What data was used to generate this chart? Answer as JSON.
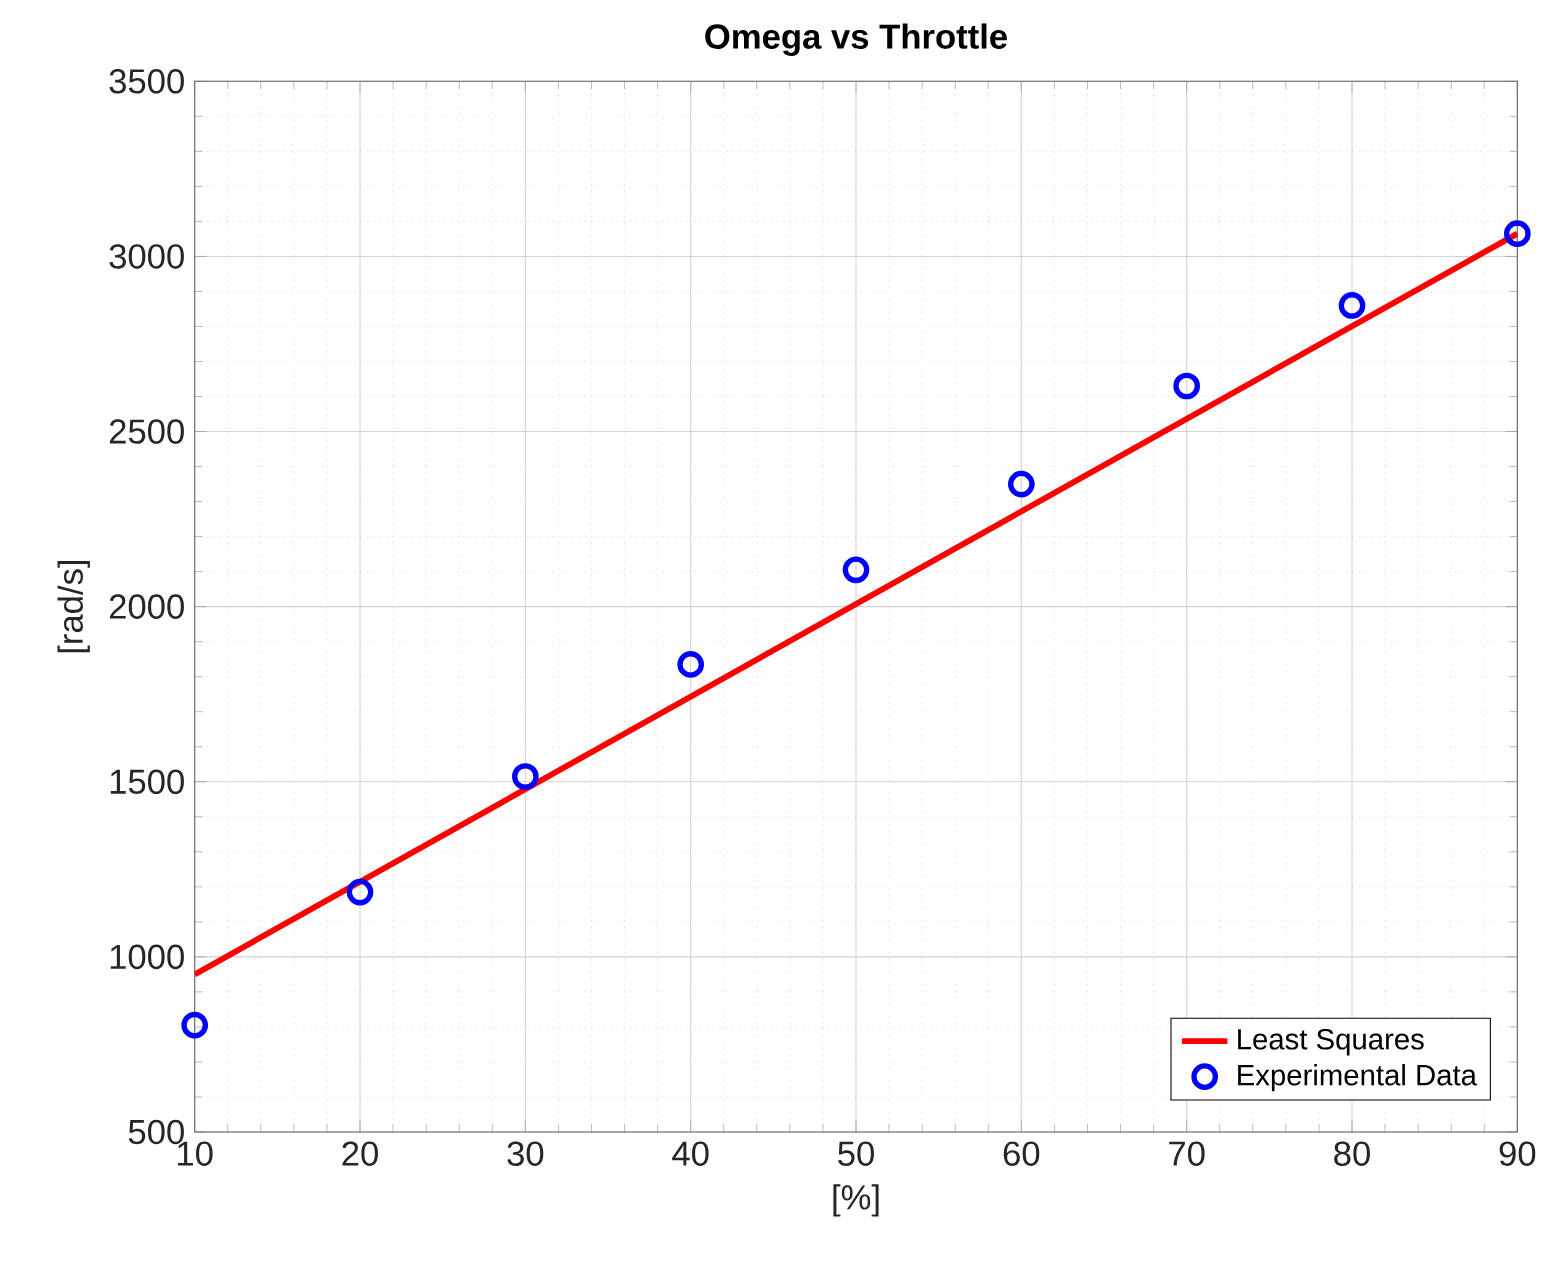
{
  "chart_data": {
    "type": "scatter",
    "title": "Omega vs Throttle",
    "xlabel": "[%]",
    "ylabel": "[rad/s]",
    "series": [
      {
        "name": "Least Squares",
        "type": "line",
        "marker": "none",
        "color": "#ff0000",
        "x": [
          10,
          90
        ],
        "values": [
          950,
          3065
        ]
      },
      {
        "name": "Experimental Data",
        "color": "#0000ff",
        "x": [
          10,
          20,
          30,
          40,
          50,
          60,
          70,
          80,
          90
        ],
        "values": [
          805,
          1185,
          1515,
          1835,
          2105,
          2350,
          2630,
          2860,
          3065
        ]
      }
    ],
    "xlim": [
      10,
      90
    ],
    "xticks": [
      10,
      20,
      30,
      40,
      50,
      60,
      70,
      80,
      90
    ],
    "ylim": [
      500,
      3500
    ],
    "yticks": [
      500,
      1000,
      1500,
      2000,
      2500,
      3000,
      3500
    ],
    "grid": true,
    "legend": "bottom right",
    "marker": "circle",
    "line_style": "solid"
  }
}
